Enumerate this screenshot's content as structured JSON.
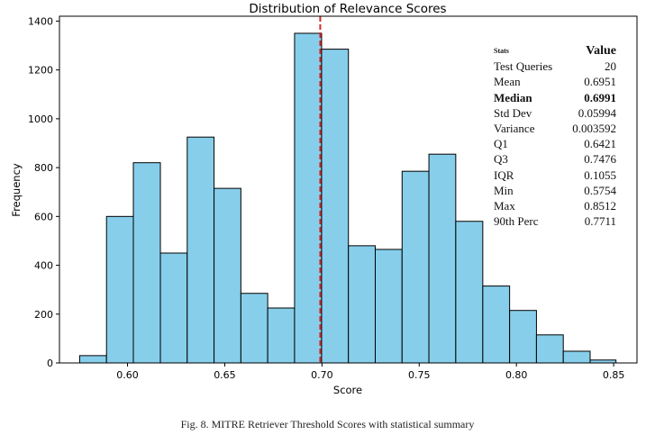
{
  "chart_data": {
    "type": "bar",
    "title": "Distribution of Relevance Scores",
    "xlabel": "Score",
    "ylabel": "Frequency",
    "xlim": [
      0.565,
      0.862
    ],
    "ylim": [
      0,
      1420
    ],
    "xticks": [
      "0.60",
      "0.65",
      "0.70",
      "0.75",
      "0.80",
      "0.85"
    ],
    "yticks": [
      "0",
      "200",
      "400",
      "600",
      "800",
      "1000",
      "1200",
      "1400"
    ],
    "bin_edges": [
      0.5754,
      0.5892,
      0.603,
      0.6169,
      0.6307,
      0.6445,
      0.6583,
      0.6721,
      0.6859,
      0.6998,
      0.7136,
      0.7274,
      0.7412,
      0.755,
      0.7688,
      0.7827,
      0.7965,
      0.8103,
      0.8241,
      0.8379,
      0.8512
    ],
    "values": [
      30,
      600,
      820,
      450,
      925,
      715,
      285,
      225,
      1350,
      1285,
      480,
      465,
      785,
      855,
      580,
      315,
      215,
      115,
      48,
      12
    ],
    "bar_color": "#87CEEB",
    "edge_color": "#000000",
    "median_line": {
      "x": 0.6991,
      "color": "#d62728",
      "style": "dashed"
    },
    "grid": false,
    "legend": "none"
  },
  "stats_table": {
    "header": {
      "label": "Stats",
      "value": "Value"
    },
    "rows": [
      {
        "label": "Test Queries",
        "value": "20",
        "bold": false
      },
      {
        "label": "Mean",
        "value": "0.6951",
        "bold": false
      },
      {
        "label": "Median",
        "value": "0.6991",
        "bold": true
      },
      {
        "label": "Std Dev",
        "value": "0.05994",
        "bold": false
      },
      {
        "label": "Variance",
        "value": "0.003592",
        "bold": false
      },
      {
        "label": "Q1",
        "value": "0.6421",
        "bold": false
      },
      {
        "label": "Q3",
        "value": "0.7476",
        "bold": false
      },
      {
        "label": "IQR",
        "value": "0.1055",
        "bold": false
      },
      {
        "label": "Min",
        "value": "0.5754",
        "bold": false
      },
      {
        "label": "Max",
        "value": "0.8512",
        "bold": false
      },
      {
        "label": "90th Perc",
        "value": "0.7711",
        "bold": false
      }
    ]
  },
  "caption": "Fig. 8.  MITRE Retriever Threshold Scores with statistical summary"
}
